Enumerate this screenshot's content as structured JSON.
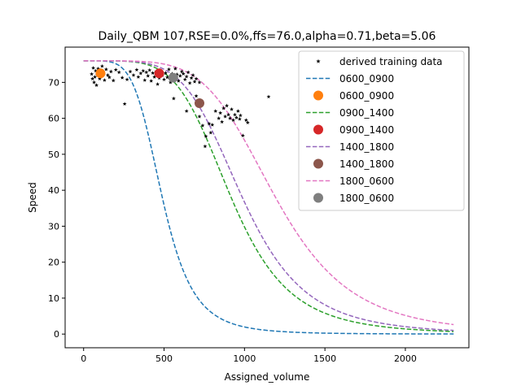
{
  "chart_data": {
    "type": "scatter",
    "title": "Daily_QBM 107,RSE=0.0%,ffs=76.0,alpha=0.71,beta=5.06",
    "xlabel": "Assigned_volume",
    "ylabel": "Speed",
    "xlim": [
      -115,
      2395
    ],
    "ylim": [
      -3.8,
      79.8
    ],
    "xticks": [
      0,
      500,
      1000,
      1500,
      2000
    ],
    "yticks": [
      0,
      10,
      20,
      30,
      40,
      50,
      60,
      70
    ],
    "grid": false,
    "legend_position": "top-right",
    "model": {
      "ffs": 76.0,
      "alpha": 0.71,
      "beta": 5.06
    },
    "curves": [
      {
        "name": "0600_0900",
        "color": "#1f77b4",
        "x0": 457,
        "x_max": 2300
      },
      {
        "name": "0900_1400",
        "color": "#2ca02c",
        "x0": 857,
        "x_max": 2300
      },
      {
        "name": "1400_1800",
        "color": "#9467bd",
        "x0": 922,
        "x_max": 2300
      },
      {
        "name": "1800_0600",
        "color": "#e377c2",
        "x0": 1115,
        "x_max": 2300
      }
    ],
    "period_points": [
      {
        "name": "0600_0900",
        "color": "#ff7f0e",
        "x": 105,
        "y": 72.5
      },
      {
        "name": "0900_1400",
        "color": "#d62728",
        "x": 470,
        "y": 72.5
      },
      {
        "name": "1400_1800",
        "color": "#8c564b",
        "x": 720,
        "y": 64.2
      },
      {
        "name": "1800_0600",
        "color": "#7f7f7f",
        "x": 557,
        "y": 71.3
      }
    ],
    "training_series": {
      "name": "derived training data",
      "color": "#000000",
      "points": [
        [
          50,
          72.3
        ],
        [
          55,
          71.0
        ],
        [
          60,
          74.0
        ],
        [
          65,
          70.0
        ],
        [
          70,
          71.5
        ],
        [
          75,
          73.2
        ],
        [
          80,
          69.2
        ],
        [
          85,
          72.0
        ],
        [
          90,
          73.8
        ],
        [
          95,
          72.8
        ],
        [
          100,
          71.0
        ],
        [
          110,
          73.0
        ],
        [
          115,
          74.5
        ],
        [
          120,
          72.2
        ],
        [
          130,
          70.6
        ],
        [
          140,
          73.6
        ],
        [
          150,
          72.0
        ],
        [
          160,
          71.4
        ],
        [
          170,
          73.0
        ],
        [
          185,
          70.5
        ],
        [
          200,
          73.5
        ],
        [
          220,
          72.8
        ],
        [
          240,
          71.3
        ],
        [
          255,
          64.0
        ],
        [
          270,
          70.8
        ],
        [
          290,
          73.0
        ],
        [
          310,
          72.0
        ],
        [
          330,
          73.5
        ],
        [
          340,
          71.5
        ],
        [
          355,
          72.5
        ],
        [
          370,
          73.2
        ],
        [
          380,
          70.6
        ],
        [
          390,
          72.8
        ],
        [
          400,
          71.8
        ],
        [
          410,
          73.4
        ],
        [
          420,
          70.4
        ],
        [
          430,
          72.6
        ],
        [
          440,
          71.5
        ],
        [
          450,
          73.0
        ],
        [
          460,
          69.5
        ],
        [
          470,
          71.2
        ],
        [
          480,
          73.2
        ],
        [
          490,
          72.0
        ],
        [
          500,
          70.8
        ],
        [
          510,
          72.6
        ],
        [
          520,
          71.4
        ],
        [
          530,
          73.6
        ],
        [
          540,
          70.0
        ],
        [
          550,
          72.4
        ],
        [
          560,
          71.0
        ],
        [
          570,
          73.8
        ],
        [
          580,
          72.2
        ],
        [
          590,
          70.4
        ],
        [
          600,
          71.8
        ],
        [
          610,
          73.0
        ],
        [
          620,
          72.4
        ],
        [
          630,
          70.8
        ],
        [
          640,
          71.6
        ],
        [
          650,
          72.8
        ],
        [
          660,
          69.8
        ],
        [
          670,
          71.2
        ],
        [
          680,
          72.0
        ],
        [
          690,
          70.2
        ],
        [
          700,
          71.0
        ],
        [
          720,
          70.0
        ],
        [
          560,
          65.5
        ],
        [
          640,
          62.0
        ],
        [
          700,
          66.2
        ],
        [
          720,
          60.5
        ],
        [
          740,
          58.0
        ],
        [
          760,
          55.0
        ],
        [
          755,
          52.2
        ],
        [
          780,
          58.5
        ],
        [
          790,
          56.0
        ],
        [
          800,
          58.2
        ],
        [
          820,
          62.0
        ],
        [
          840,
          60.0
        ],
        [
          850,
          61.5
        ],
        [
          860,
          59.0
        ],
        [
          870,
          62.8
        ],
        [
          880,
          60.5
        ],
        [
          890,
          63.5
        ],
        [
          900,
          61.0
        ],
        [
          910,
          60.0
        ],
        [
          920,
          62.5
        ],
        [
          930,
          59.5
        ],
        [
          940,
          61.0
        ],
        [
          950,
          60.2
        ],
        [
          960,
          62.0
        ],
        [
          970,
          59.8
        ],
        [
          975,
          60.8
        ],
        [
          990,
          55.2
        ],
        [
          1010,
          59.5
        ],
        [
          1020,
          58.8
        ],
        [
          1150,
          66.0
        ]
      ]
    }
  }
}
